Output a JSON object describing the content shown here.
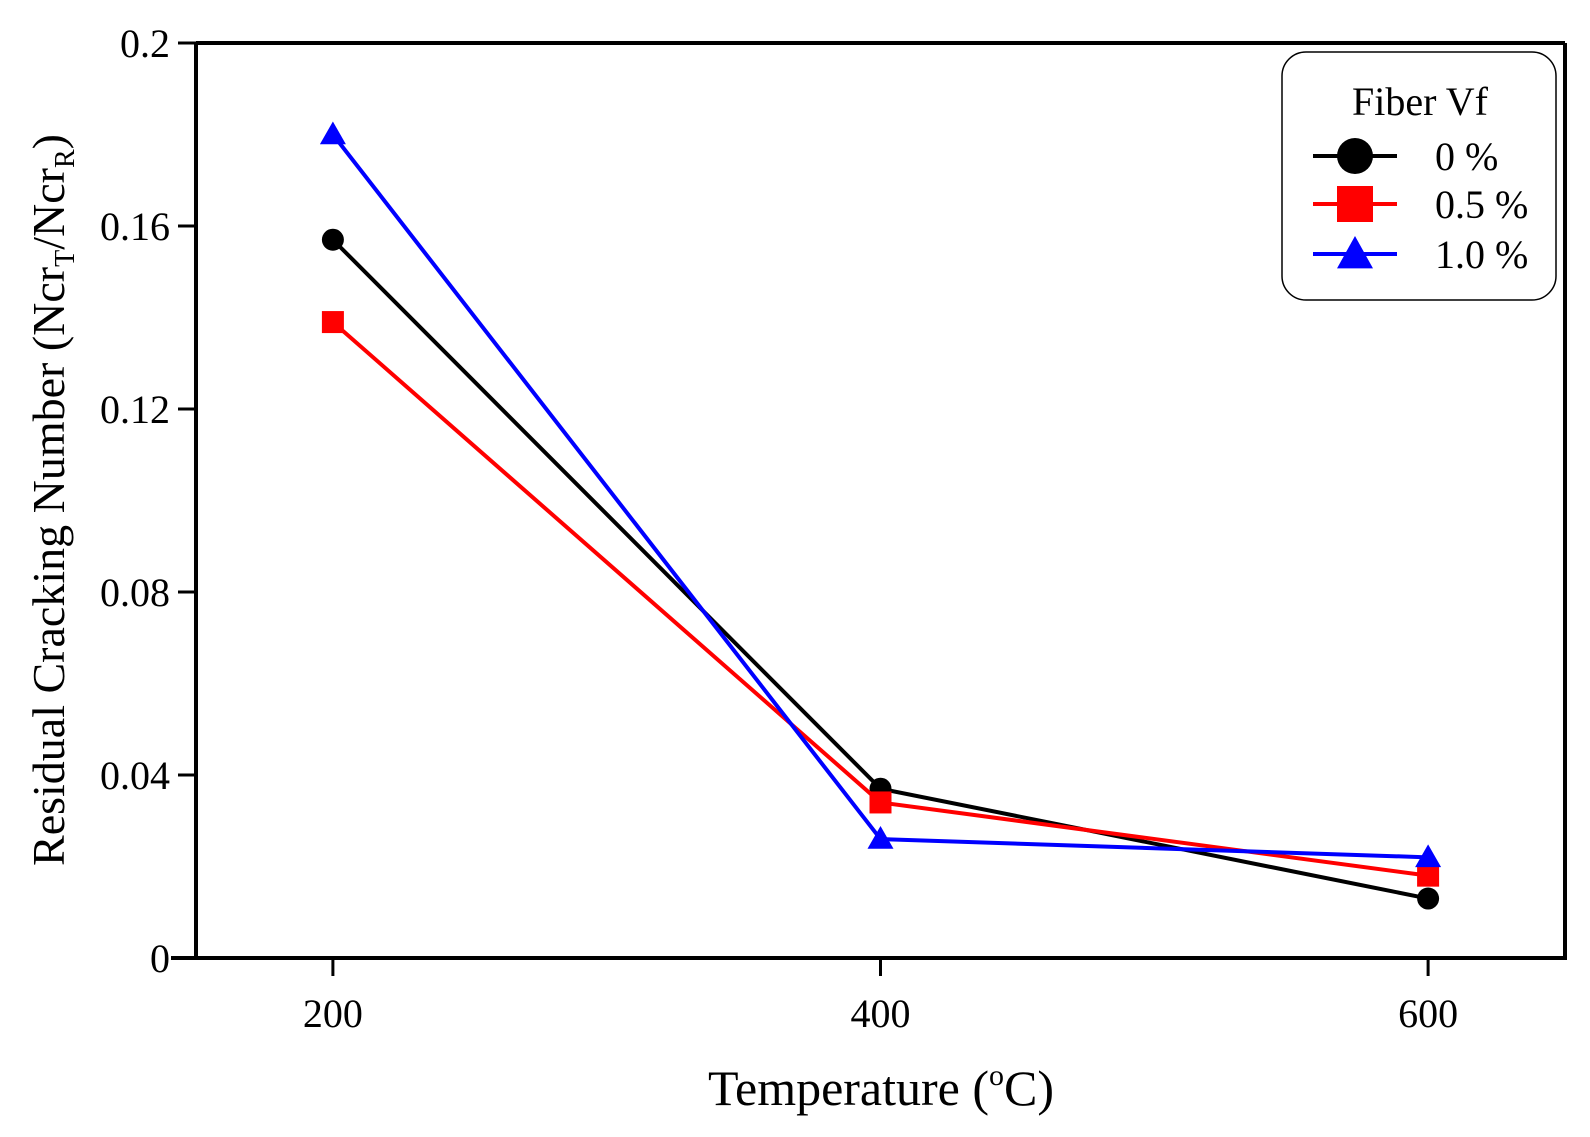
{
  "chart_data": {
    "type": "line",
    "title": "",
    "xlabel": "Temperature",
    "xlabel_unit_sup": "o",
    "xlabel_unit": "C",
    "ylabel_parts": {
      "prefix": "Residual Cracking Number (Ncr",
      "sub1": "T",
      "mid": "/Ncr",
      "sub2": "R",
      "suffix": ")"
    },
    "x": [
      200,
      400,
      600
    ],
    "x_tick_labels": [
      "200",
      "400",
      "600"
    ],
    "xlim": [
      150,
      650
    ],
    "ylim": [
      0,
      0.2
    ],
    "y_ticks": [
      0,
      0.04,
      0.08,
      0.12,
      0.16,
      0.2
    ],
    "y_tick_labels": [
      "0",
      "0.04",
      "0.08",
      "0.12",
      "0.16",
      "0.2"
    ],
    "grid": false,
    "legend": {
      "title": "Fiber Vf",
      "position": "top-right"
    },
    "series": [
      {
        "name": "0 %",
        "marker": "circle",
        "color": "#000000",
        "values": [
          0.157,
          0.037,
          0.013
        ]
      },
      {
        "name": "0.5 %",
        "marker": "square",
        "color": "#ff0000",
        "values": [
          0.139,
          0.034,
          0.018
        ]
      },
      {
        "name": "1.0 %",
        "marker": "triangle",
        "color": "#0000ff",
        "values": [
          0.18,
          0.026,
          0.022
        ]
      }
    ]
  }
}
